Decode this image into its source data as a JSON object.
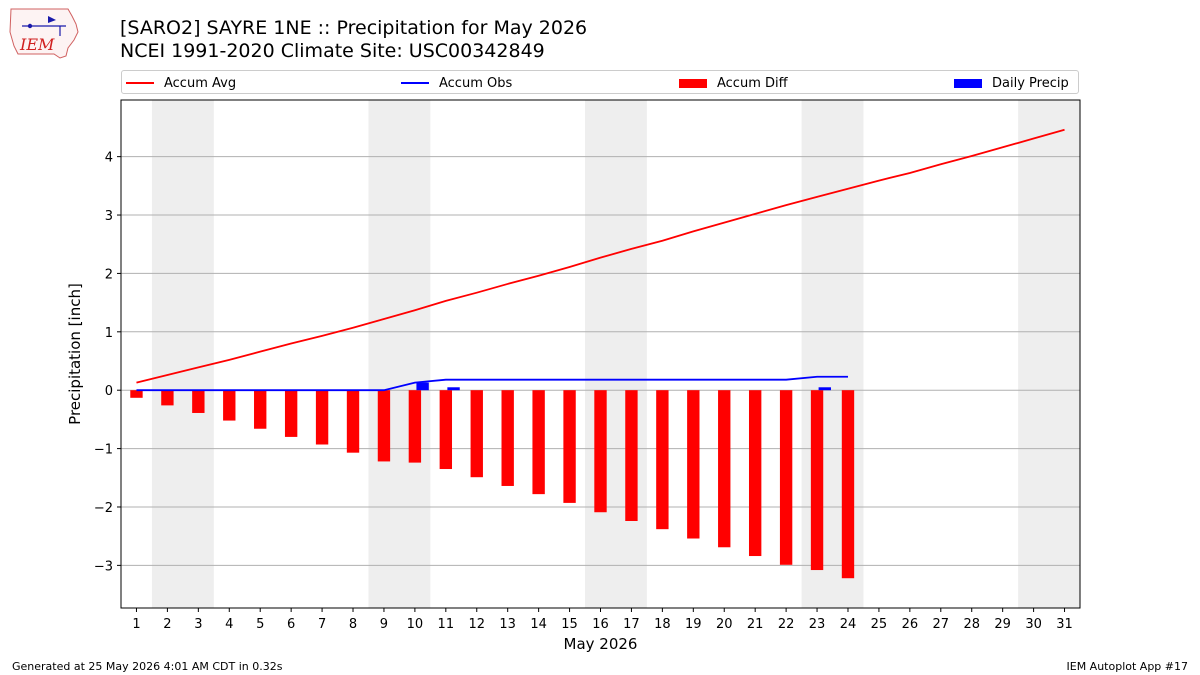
{
  "header": {
    "title_line1": "[SARO2] SAYRE 1NE :: Precipitation for May 2026",
    "title_line2": "NCEI 1991-2020 Climate Site: USC00342849",
    "logo_text": "IEM"
  },
  "legend": {
    "items": [
      {
        "label": "Accum Avg",
        "kind": "line",
        "color": "#ff0000"
      },
      {
        "label": "Accum Obs",
        "kind": "line",
        "color": "#0000ff"
      },
      {
        "label": "Accum Diff",
        "kind": "box",
        "color": "#ff0000"
      },
      {
        "label": "Daily Precip",
        "kind": "box",
        "color": "#0000ff"
      }
    ]
  },
  "footer": {
    "left": "Generated at 25 May 2026 4:01 AM CDT in 0.32s",
    "right": "IEM Autoplot App #17"
  },
  "chart_data": {
    "type": "bar",
    "xlabel": "May 2026",
    "ylabel": "Precipitation [inch]",
    "xlim": [
      0.5,
      31.5
    ],
    "ylim": [
      -3.73,
      4.97
    ],
    "yticks": [
      -3,
      -2,
      -1,
      0,
      1,
      2,
      3,
      4
    ],
    "ytick_labels": [
      "−3",
      "−2",
      "−1",
      "0",
      "1",
      "2",
      "3",
      "4"
    ],
    "days": [
      1,
      2,
      3,
      4,
      5,
      6,
      7,
      8,
      9,
      10,
      11,
      12,
      13,
      14,
      15,
      16,
      17,
      18,
      19,
      20,
      21,
      22,
      23,
      24,
      25,
      26,
      27,
      28,
      29,
      30,
      31
    ],
    "grid": "horizontal",
    "legend_position": "top",
    "weekend_shading": [
      [
        1.5,
        3.5
      ],
      [
        8.5,
        10.5
      ],
      [
        15.5,
        17.5
      ],
      [
        22.5,
        24.5
      ],
      [
        29.5,
        31.5
      ]
    ],
    "colors": {
      "avg": "#ff0000",
      "obs": "#0000ff",
      "diff": "#ff0000",
      "daily": "#0000ff",
      "shade": "#eeeeee"
    },
    "series": [
      {
        "name": "Accum Avg",
        "kind": "line",
        "values": [
          0.13,
          0.26,
          0.39,
          0.52,
          0.66,
          0.8,
          0.93,
          1.07,
          1.22,
          1.37,
          1.53,
          1.67,
          1.82,
          1.96,
          2.11,
          2.27,
          2.42,
          2.56,
          2.72,
          2.87,
          3.02,
          3.17,
          3.31,
          3.45,
          3.59,
          3.72,
          3.87,
          4.01,
          4.16,
          4.31,
          4.46
        ]
      },
      {
        "name": "Accum Obs",
        "kind": "line",
        "values": [
          0,
          0,
          0,
          0,
          0,
          0,
          0,
          0,
          0,
          0.13,
          0.18,
          0.18,
          0.18,
          0.18,
          0.18,
          0.18,
          0.18,
          0.18,
          0.18,
          0.18,
          0.18,
          0.18,
          0.23,
          0.23
        ]
      },
      {
        "name": "Accum Diff",
        "kind": "bar",
        "values": [
          -0.13,
          -0.26,
          -0.39,
          -0.52,
          -0.66,
          -0.8,
          -0.93,
          -1.07,
          -1.22,
          -1.24,
          -1.35,
          -1.49,
          -1.64,
          -1.78,
          -1.93,
          -2.09,
          -2.24,
          -2.38,
          -2.54,
          -2.69,
          -2.84,
          -2.99,
          -3.08,
          -3.22
        ]
      },
      {
        "name": "Daily Precip",
        "kind": "bar",
        "values": [
          0,
          0,
          0,
          0,
          0,
          0,
          0,
          0,
          0,
          0.13,
          0.05,
          0,
          0,
          0,
          0,
          0,
          0,
          0,
          0,
          0,
          0,
          0,
          0.05,
          0
        ]
      }
    ]
  }
}
